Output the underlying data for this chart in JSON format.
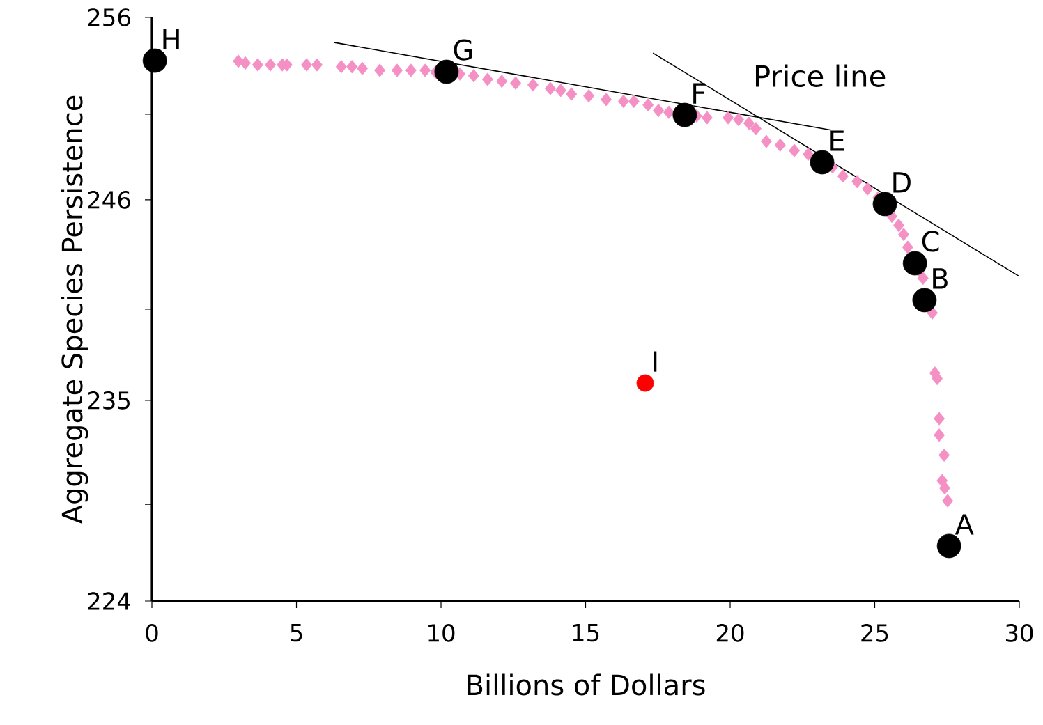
{
  "chart_data": {
    "type": "scatter",
    "xlabel": "Billions of Dollars",
    "ylabel": "Aggregate Species Persistence",
    "xlim": [
      0,
      30
    ],
    "ylim": [
      224,
      256
    ],
    "xticks": [
      0,
      5,
      10,
      15,
      20,
      25,
      30
    ],
    "yticks": [
      224,
      {
        "value": 229.3,
        "label": null
      },
      235,
      {
        "value": 240.0,
        "label": null
      },
      246,
      {
        "value": 250.7,
        "label": null
      },
      256
    ],
    "grid": false,
    "series": [
      {
        "marker": "diamond",
        "color": "#f490c4",
        "x": [
          2.99,
          3.23,
          3.66,
          4.1,
          4.51,
          4.67,
          5.35,
          5.71,
          6.55,
          6.92,
          7.28,
          7.88,
          8.48,
          8.96,
          9.45,
          9.81,
          10.65,
          11.13,
          11.61,
          12.1,
          12.58,
          13.18,
          13.78,
          14.14,
          14.51,
          15.11,
          15.71,
          16.31,
          16.67,
          17.16,
          17.52,
          17.88,
          18.84,
          19.2,
          19.93,
          20.29,
          20.65,
          20.89,
          21.25,
          21.73,
          22.22,
          22.7,
          23.54,
          23.9,
          24.39,
          24.75,
          25.11,
          25.59,
          25.83,
          26.0,
          26.14,
          26.55,
          26.67,
          26.8,
          26.99,
          27.08,
          27.16,
          27.23,
          27.23,
          27.4,
          27.33,
          27.42,
          27.52
        ],
        "values": [
          253.6,
          253.5,
          253.4,
          253.4,
          253.4,
          253.4,
          253.4,
          253.4,
          253.3,
          253.3,
          253.2,
          253.1,
          253.1,
          253.1,
          253.1,
          253.0,
          252.9,
          252.8,
          252.6,
          252.5,
          252.4,
          252.3,
          252.1,
          252.0,
          251.8,
          251.7,
          251.5,
          251.4,
          251.4,
          251.2,
          250.9,
          250.8,
          250.6,
          250.5,
          250.5,
          250.4,
          250.2,
          249.9,
          249.2,
          249.0,
          248.7,
          248.5,
          247.8,
          247.3,
          247.0,
          246.6,
          246.1,
          245.1,
          244.6,
          244.1,
          243.4,
          242.1,
          241.7,
          null,
          239.8,
          236.5,
          236.2,
          234.0,
          233.1,
          232.0,
          230.6,
          230.2,
          229.5
        ]
      },
      {
        "type": "line",
        "marker": "none",
        "color": "#000000",
        "x": [
          6.29,
          23.49
        ],
        "values": [
          254.63,
          249.82
        ]
      },
      {
        "type": "line",
        "marker": "none",
        "color": "#000000",
        "x": [
          17.33,
          30.0
        ],
        "values": [
          254.05,
          241.8
        ]
      },
      {
        "marker": "circle",
        "color": "#000000",
        "x": [
          0.1,
          10.19,
          18.43,
          23.18,
          25.35,
          26.39,
          26.72,
          27.57
        ],
        "values": [
          253.63,
          253.02,
          250.65,
          248.06,
          245.77,
          242.52,
          240.5,
          227.02
        ]
      },
      {
        "marker": "circle",
        "color": "#ff0000",
        "x": [
          17.06
        ],
        "values": [
          235.95
        ]
      }
    ],
    "annotations": [
      {
        "text": "H",
        "x": 0.1,
        "y": 253.63
      },
      {
        "text": "G",
        "x": 10.19,
        "y": 253.02
      },
      {
        "text": "F",
        "x": 18.43,
        "y": 250.65
      },
      {
        "text": "E",
        "x": 23.18,
        "y": 248.06
      },
      {
        "text": "D",
        "x": 25.35,
        "y": 245.77
      },
      {
        "text": "C",
        "x": 26.39,
        "y": 242.52
      },
      {
        "text": "B",
        "x": 26.72,
        "y": 240.5
      },
      {
        "text": "A",
        "x": 27.57,
        "y": 227.02
      },
      {
        "text": "I",
        "x": 17.06,
        "y": 235.95
      },
      "Price line"
    ]
  }
}
